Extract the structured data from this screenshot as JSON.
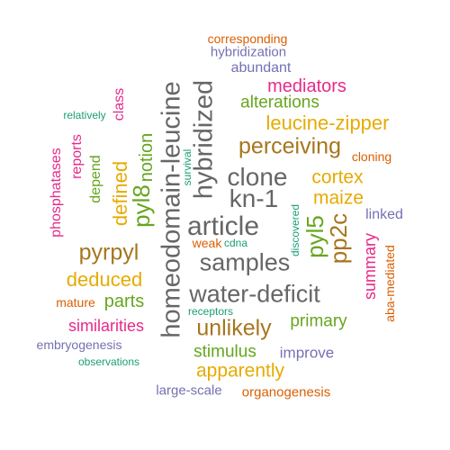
{
  "colors": {
    "orange": "#d95f02",
    "purple": "#7570b3",
    "magenta": "#e7298a",
    "green": "#66a61e",
    "gold": "#e6ab02",
    "brown": "#a6761d",
    "gray": "#666666",
    "teal": "#1b9e77"
  },
  "words": [
    {
      "text": "corresponding",
      "color": "orange",
      "rotated": false
    },
    {
      "text": "hybridization",
      "color": "purple",
      "rotated": false
    },
    {
      "text": "abundant",
      "color": "purple",
      "rotated": false
    },
    {
      "text": "mediators",
      "color": "magenta",
      "rotated": false
    },
    {
      "text": "alterations",
      "color": "green",
      "rotated": false
    },
    {
      "text": "relatively",
      "color": "teal",
      "rotated": false
    },
    {
      "text": "class",
      "color": "magenta",
      "rotated": true
    },
    {
      "text": "leucine-zipper",
      "color": "gold",
      "rotated": false
    },
    {
      "text": "perceiving",
      "color": "brown",
      "rotated": false
    },
    {
      "text": "cloning",
      "color": "orange",
      "rotated": false
    },
    {
      "text": "phosphatases",
      "color": "magenta",
      "rotated": true
    },
    {
      "text": "reports",
      "color": "magenta",
      "rotated": true
    },
    {
      "text": "depend",
      "color": "green",
      "rotated": true
    },
    {
      "text": "notion",
      "color": "green",
      "rotated": true
    },
    {
      "text": "defined",
      "color": "gold",
      "rotated": true
    },
    {
      "text": "pyl8",
      "color": "green",
      "rotated": true
    },
    {
      "text": "survival",
      "color": "teal",
      "rotated": true
    },
    {
      "text": "homeodomain-leucine",
      "color": "gray",
      "rotated": true
    },
    {
      "text": "hybridized",
      "color": "gray",
      "rotated": true
    },
    {
      "text": "clone",
      "color": "gray",
      "rotated": false
    },
    {
      "text": "cortex",
      "color": "gold",
      "rotated": false
    },
    {
      "text": "kn-1",
      "color": "gray",
      "rotated": false
    },
    {
      "text": "maize",
      "color": "gold",
      "rotated": false
    },
    {
      "text": "article",
      "color": "gray",
      "rotated": false
    },
    {
      "text": "pyl5",
      "color": "green",
      "rotated": true
    },
    {
      "text": "pp2c",
      "color": "brown",
      "rotated": true
    },
    {
      "text": "discovered",
      "color": "teal",
      "rotated": true
    },
    {
      "text": "linked",
      "color": "purple",
      "rotated": false
    },
    {
      "text": "weak",
      "color": "orange",
      "rotated": false
    },
    {
      "text": "cdna",
      "color": "teal",
      "rotated": false
    },
    {
      "text": "pyrpyl",
      "color": "brown",
      "rotated": false
    },
    {
      "text": "samples",
      "color": "gray",
      "rotated": false
    },
    {
      "text": "summary",
      "color": "magenta",
      "rotated": true
    },
    {
      "text": "aba-mediated",
      "color": "orange",
      "rotated": true
    },
    {
      "text": "deduced",
      "color": "gold",
      "rotated": false
    },
    {
      "text": "parts",
      "color": "green",
      "rotated": false
    },
    {
      "text": "water-deficit",
      "color": "gray",
      "rotated": false
    },
    {
      "text": "mature",
      "color": "orange",
      "rotated": false
    },
    {
      "text": "receptors",
      "color": "teal",
      "rotated": false
    },
    {
      "text": "similarities",
      "color": "magenta",
      "rotated": false
    },
    {
      "text": "unlikely",
      "color": "brown",
      "rotated": false
    },
    {
      "text": "primary",
      "color": "green",
      "rotated": false
    },
    {
      "text": "embryogenesis",
      "color": "purple",
      "rotated": false
    },
    {
      "text": "stimulus",
      "color": "green",
      "rotated": false
    },
    {
      "text": "improve",
      "color": "purple",
      "rotated": false
    },
    {
      "text": "observations",
      "color": "teal",
      "rotated": false
    },
    {
      "text": "apparently",
      "color": "gold",
      "rotated": false
    },
    {
      "text": "large-scale",
      "color": "purple",
      "rotated": false
    },
    {
      "text": "organogenesis",
      "color": "orange",
      "rotated": false
    }
  ]
}
